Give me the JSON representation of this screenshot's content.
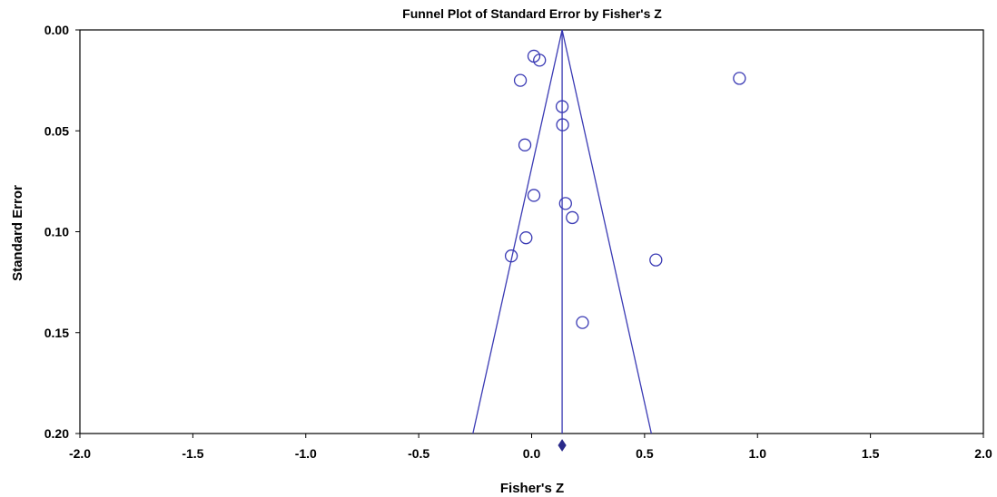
{
  "chart_data": {
    "type": "scatter",
    "title": "Funnel Plot of Standard Error by Fisher's Z",
    "xlabel": "Fisher's Z",
    "ylabel": "Standard Error",
    "xlim": [
      -2.0,
      2.0
    ],
    "ylim": [
      0.0,
      0.2
    ],
    "y_inverted": true,
    "x_ticks": [
      "-2.0",
      "-1.5",
      "-1.0",
      "-0.5",
      "0.0",
      "0.5",
      "1.0",
      "1.5",
      "2.0"
    ],
    "y_ticks": [
      "0.00",
      "0.05",
      "0.10",
      "0.15",
      "0.20"
    ],
    "grid": false,
    "point_marker": "open-circle",
    "color": "#3a3ab4",
    "points": [
      {
        "x": 0.01,
        "y": 0.013
      },
      {
        "x": 0.035,
        "y": 0.015
      },
      {
        "x": -0.05,
        "y": 0.025
      },
      {
        "x": 0.92,
        "y": 0.024
      },
      {
        "x": 0.135,
        "y": 0.038
      },
      {
        "x": 0.137,
        "y": 0.047
      },
      {
        "x": -0.03,
        "y": 0.057
      },
      {
        "x": 0.01,
        "y": 0.082
      },
      {
        "x": 0.15,
        "y": 0.086
      },
      {
        "x": 0.18,
        "y": 0.093
      },
      {
        "x": -0.025,
        "y": 0.103
      },
      {
        "x": -0.09,
        "y": 0.112
      },
      {
        "x": 0.55,
        "y": 0.114
      },
      {
        "x": 0.225,
        "y": 0.145
      }
    ],
    "pooled_estimate": 0.135,
    "funnel": {
      "apex": {
        "x": 0.135,
        "y": 0.0
      },
      "left_base": {
        "x": -0.26,
        "y": 0.2
      },
      "right_base": {
        "x": 0.53,
        "y": 0.2
      }
    }
  }
}
